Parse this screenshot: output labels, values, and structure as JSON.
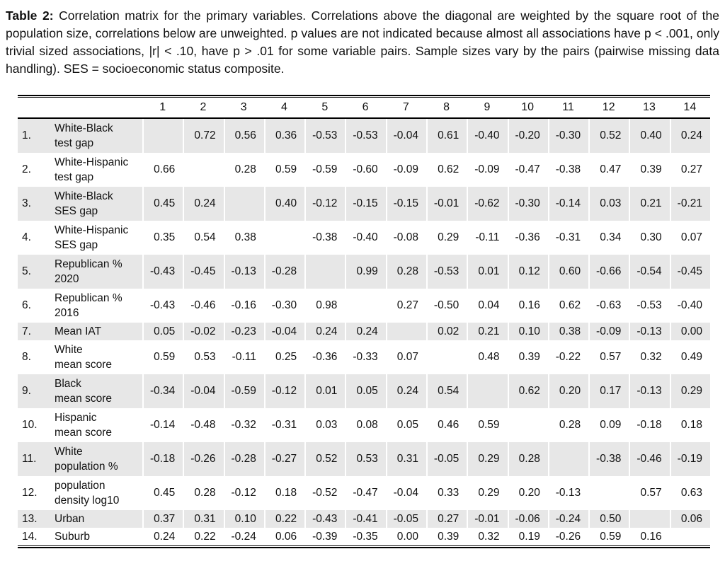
{
  "caption": {
    "label": "Table 2:",
    "text": "Correlation matrix for the primary variables. Correlations above the diagonal are weighted by the square root of the population size, correlations below are unweighted. p values are not indicated because almost all associations have p < .001, only trivial sized associations, |r| < .10, have p > .01 for some variable pairs. Sample sizes vary by the pairs (pairwise missing data handling). SES = socioeconomic status composite."
  },
  "colors": {
    "stripe": "#e7e7e7",
    "rule": "#000000",
    "text": "#111111"
  },
  "table": {
    "column_headers": [
      "1",
      "2",
      "3",
      "4",
      "5",
      "6",
      "7",
      "8",
      "9",
      "10",
      "11",
      "12",
      "13",
      "14"
    ],
    "rows": [
      {
        "num": "1.",
        "label": "White-Black\ntest gap",
        "values": [
          "",
          "0.72",
          "0.56",
          "0.36",
          "-0.53",
          "-0.53",
          "-0.04",
          "0.61",
          "-0.40",
          "-0.20",
          "-0.30",
          "0.52",
          "0.40",
          "0.24"
        ]
      },
      {
        "num": "2.",
        "label": "White-Hispanic\ntest gap",
        "values": [
          "0.66",
          "",
          "0.28",
          "0.59",
          "-0.59",
          "-0.60",
          "-0.09",
          "0.62",
          "-0.09",
          "-0.47",
          "-0.38",
          "0.47",
          "0.39",
          "0.27"
        ]
      },
      {
        "num": "3.",
        "label": "White-Black\nSES gap",
        "values": [
          "0.45",
          "0.24",
          "",
          "0.40",
          "-0.12",
          "-0.15",
          "-0.15",
          "-0.01",
          "-0.62",
          "-0.30",
          "-0.14",
          "0.03",
          "0.21",
          "-0.21"
        ]
      },
      {
        "num": "4.",
        "label": "White-Hispanic\nSES gap",
        "values": [
          "0.35",
          "0.54",
          "0.38",
          "",
          "-0.38",
          "-0.40",
          "-0.08",
          "0.29",
          "-0.11",
          "-0.36",
          "-0.31",
          "0.34",
          "0.30",
          "0.07"
        ]
      },
      {
        "num": "5.",
        "label": "Republican %\n2020",
        "values": [
          "-0.43",
          "-0.45",
          "-0.13",
          "-0.28",
          "",
          "0.99",
          "0.28",
          "-0.53",
          "0.01",
          "0.12",
          "0.60",
          "-0.66",
          "-0.54",
          "-0.45"
        ]
      },
      {
        "num": "6.",
        "label": "Republican %\n2016",
        "values": [
          "-0.43",
          "-0.46",
          "-0.16",
          "-0.30",
          "0.98",
          "",
          "0.27",
          "-0.50",
          "0.04",
          "0.16",
          "0.62",
          "-0.63",
          "-0.53",
          "-0.40"
        ]
      },
      {
        "num": "7.",
        "label": "Mean IAT",
        "values": [
          "0.05",
          "-0.02",
          "-0.23",
          "-0.04",
          "0.24",
          "0.24",
          "",
          "0.02",
          "0.21",
          "0.10",
          "0.38",
          "-0.09",
          "-0.13",
          "0.00"
        ]
      },
      {
        "num": "8.",
        "label": "White\nmean score",
        "values": [
          "0.59",
          "0.53",
          "-0.11",
          "0.25",
          "-0.36",
          "-0.33",
          "0.07",
          "",
          "0.48",
          "0.39",
          "-0.22",
          "0.57",
          "0.32",
          "0.49"
        ]
      },
      {
        "num": "9.",
        "label": "Black\nmean score",
        "values": [
          "-0.34",
          "-0.04",
          "-0.59",
          "-0.12",
          "0.01",
          "0.05",
          "0.24",
          "0.54",
          "",
          "0.62",
          "0.20",
          "0.17",
          "-0.13",
          "0.29"
        ]
      },
      {
        "num": "10.",
        "label": "Hispanic\nmean score",
        "values": [
          "-0.14",
          "-0.48",
          "-0.32",
          "-0.31",
          "0.03",
          "0.08",
          "0.05",
          "0.46",
          "0.59",
          "",
          "0.28",
          "0.09",
          "-0.18",
          "0.18"
        ]
      },
      {
        "num": "11.",
        "label": "White\npopulation %",
        "values": [
          "-0.18",
          "-0.26",
          "-0.28",
          "-0.27",
          "0.52",
          "0.53",
          "0.31",
          "-0.05",
          "0.29",
          "0.28",
          "",
          "-0.38",
          "-0.46",
          "-0.19"
        ]
      },
      {
        "num": "12.",
        "label": "population\ndensity log10",
        "values": [
          "0.45",
          "0.28",
          "-0.12",
          "0.18",
          "-0.52",
          "-0.47",
          "-0.04",
          "0.33",
          "0.29",
          "0.20",
          "-0.13",
          "",
          "0.57",
          "0.63"
        ]
      },
      {
        "num": "13.",
        "label": "Urban",
        "values": [
          "0.37",
          "0.31",
          "0.10",
          "0.22",
          "-0.43",
          "-0.41",
          "-0.05",
          "0.27",
          "-0.01",
          "-0.06",
          "-0.24",
          "0.50",
          "",
          "0.06"
        ]
      },
      {
        "num": "14.",
        "label": "Suburb",
        "values": [
          "0.24",
          "0.22",
          "-0.24",
          "0.06",
          "-0.39",
          "-0.35",
          "0.00",
          "0.39",
          "0.32",
          "0.19",
          "-0.26",
          "0.59",
          "0.16",
          ""
        ]
      }
    ]
  }
}
